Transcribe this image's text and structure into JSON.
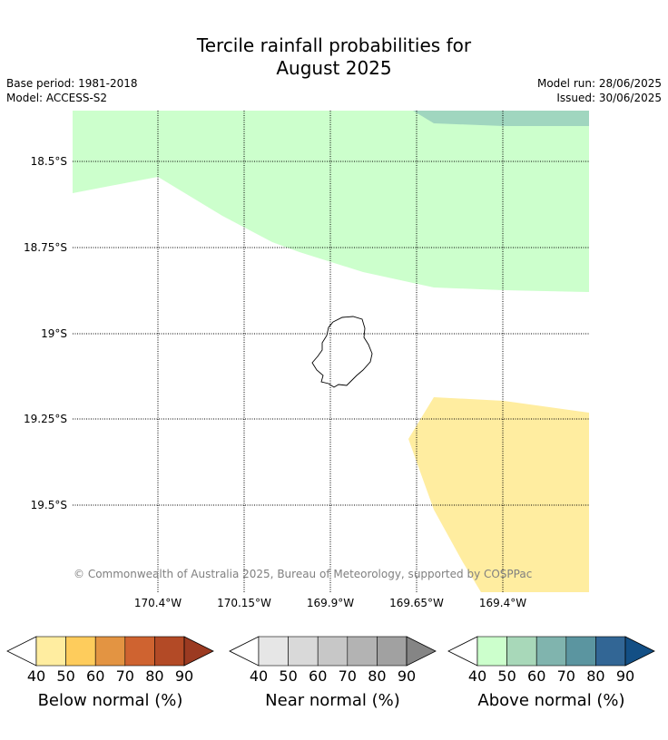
{
  "title_line1": "Tercile rainfall probabilities for",
  "title_line2": "August 2025",
  "meta": {
    "base_period": "Base period: 1981-2018",
    "model": "Model: ACCESS-S2",
    "model_run": "Model run: 28/06/2025",
    "issued": "Issued: 30/06/2025"
  },
  "map": {
    "lon_labels": [
      "170.4°W",
      "170.15°W",
      "169.9°W",
      "169.65°W",
      "169.4°W"
    ],
    "lat_labels": [
      "18.5°S",
      "18.75°S",
      "19°S",
      "19.25°S",
      "19.5°S"
    ],
    "copyright": "© Commonwealth of Australia 2025, Bureau of Meteorology, supported by COSPPac",
    "region_colors": {
      "above_40_50": "#ccffcc",
      "above_50_60": "#a0d6bf",
      "below_40_50": "#ffeda0"
    }
  },
  "colorbars": [
    {
      "name": "below",
      "title": "Below normal (%)",
      "ticks": [
        "40",
        "50",
        "60",
        "70",
        "80",
        "90"
      ],
      "colors": [
        "#ffeda0",
        "#fecc5c",
        "#e39442",
        "#cf6330",
        "#b34a26",
        "#9b3a21"
      ]
    },
    {
      "name": "near",
      "title": "Near normal (%)",
      "ticks": [
        "40",
        "50",
        "60",
        "70",
        "80",
        "90"
      ],
      "colors": [
        "#e6e6e6",
        "#d9d9d9",
        "#c7c7c7",
        "#b3b3b3",
        "#a1a1a1",
        "#858585"
      ]
    },
    {
      "name": "above",
      "title": "Above normal (%)",
      "ticks": [
        "40",
        "50",
        "60",
        "70",
        "80",
        "90"
      ],
      "colors": [
        "#ccffcc",
        "#a8d8b9",
        "#80b4ae",
        "#5b95a0",
        "#326695",
        "#134f85"
      ]
    }
  ]
}
